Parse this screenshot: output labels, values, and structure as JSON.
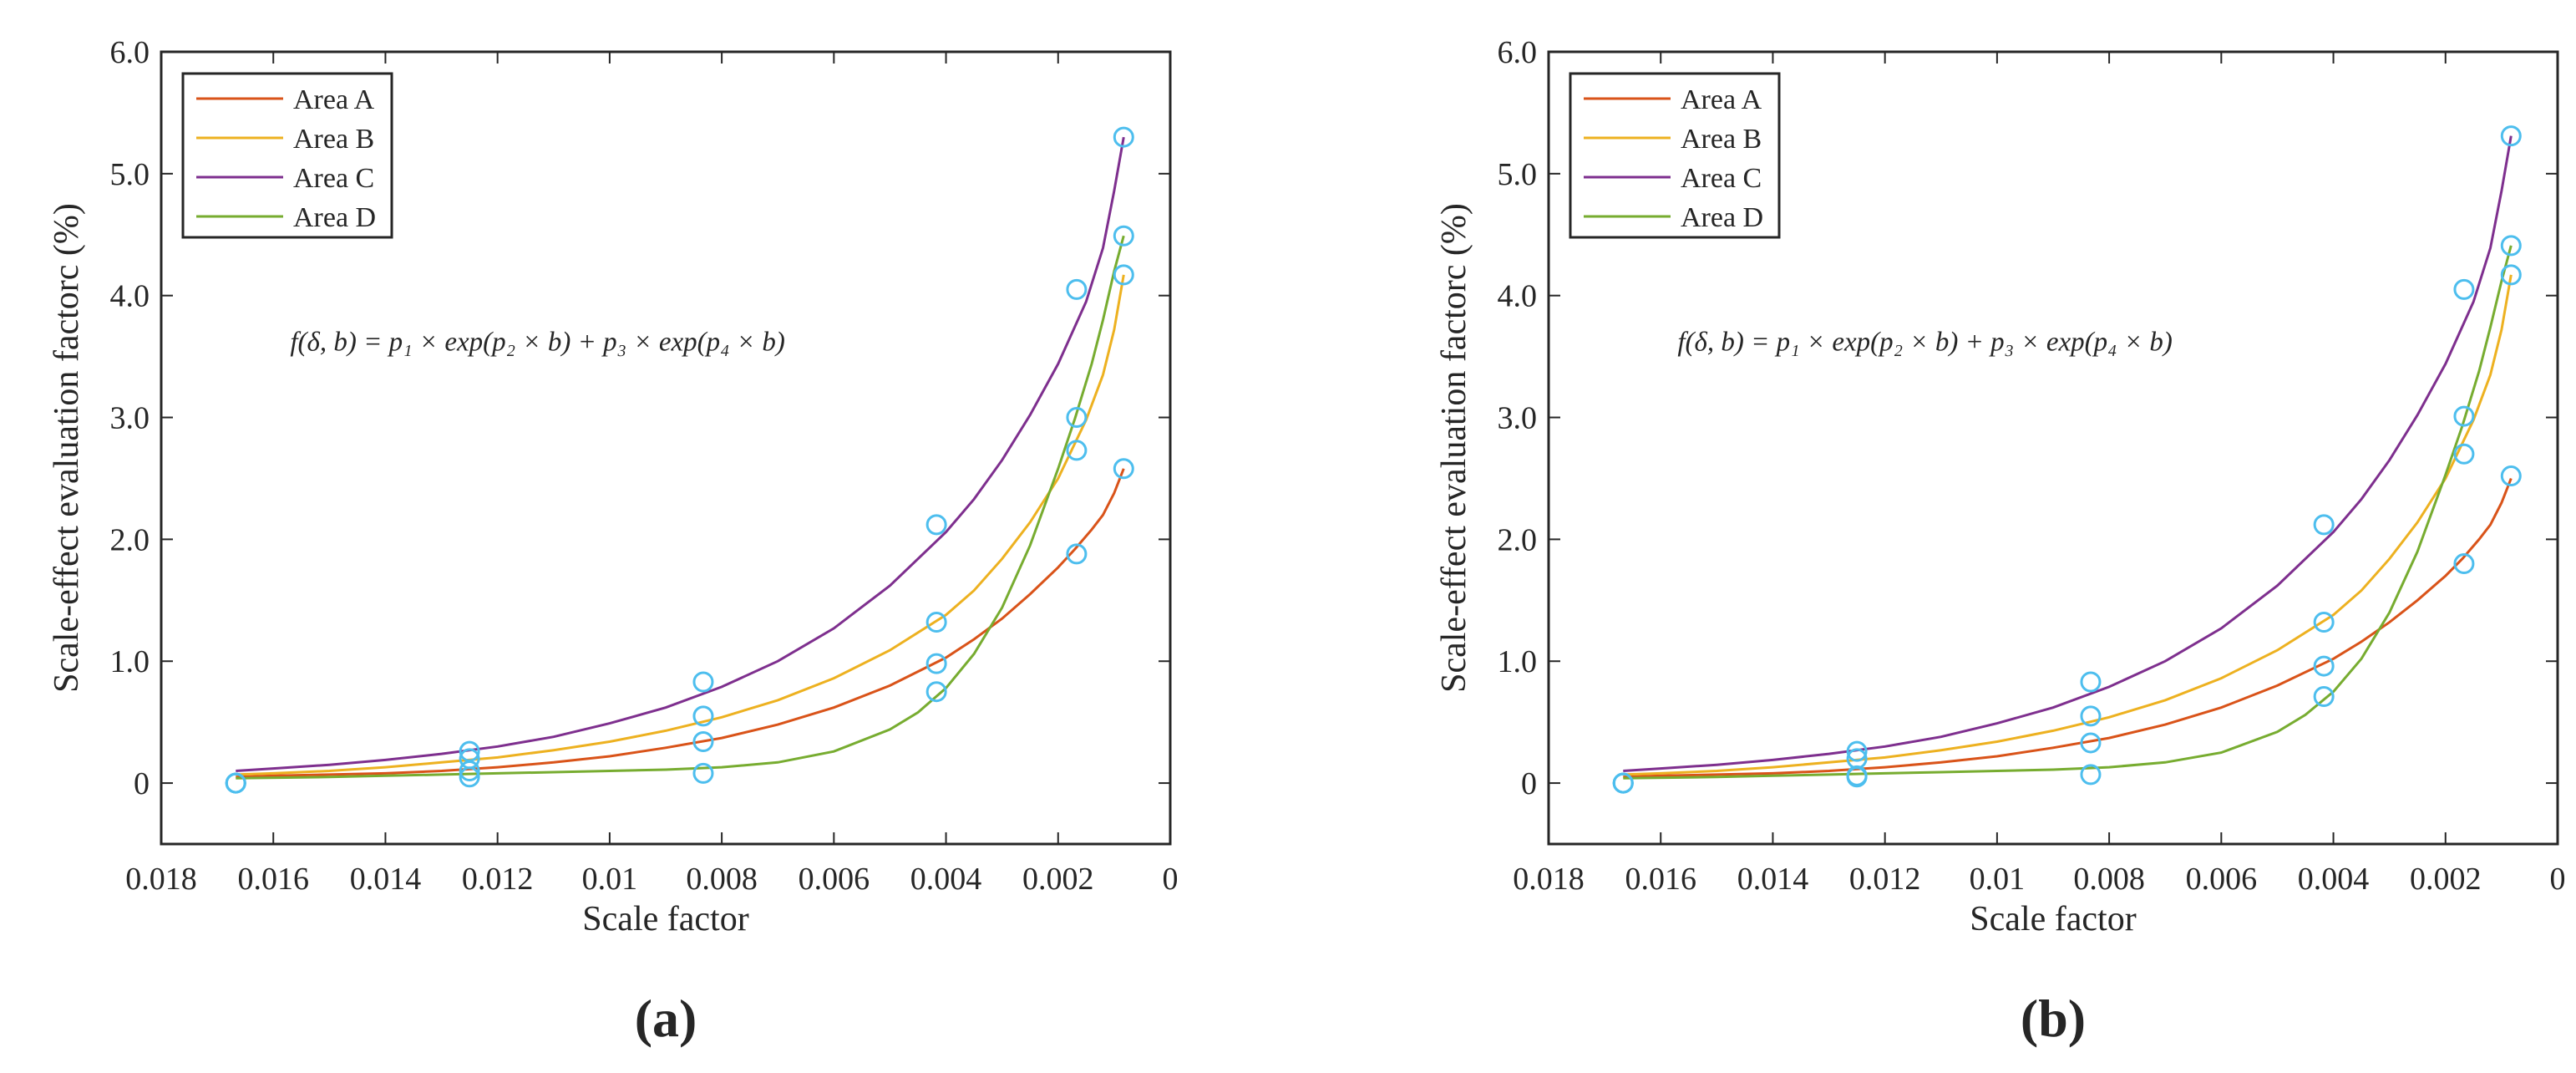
{
  "colors": {
    "area_a": "#d95319",
    "area_b": "#edb120",
    "area_c": "#7e2f8e",
    "area_d": "#77ac30",
    "marker": "#4dbeee",
    "axis": "#262626"
  },
  "chart_data": [
    {
      "type": "line",
      "panel_label": "(a)",
      "xlabel": "Scale factor",
      "ylabel": "Scale-effect evaluation factorc (%)",
      "xlim": [
        0.018,
        0
      ],
      "ylim": [
        -0.5,
        6.0
      ],
      "x_reversed": true,
      "xticks": [
        0.018,
        0.016,
        0.014,
        0.012,
        0.01,
        0.008,
        0.006,
        0.004,
        0.002,
        0
      ],
      "xtick_labels": [
        "0.018",
        "0.016",
        "0.014",
        "0.012",
        "0.01",
        "0.008",
        "0.006",
        "0.004",
        "0.002",
        "0"
      ],
      "yticks": [
        0,
        1,
        2,
        3,
        4,
        5,
        6
      ],
      "ytick_labels": [
        "0",
        "1.0",
        "2.0",
        "3.0",
        "4.0",
        "5.0",
        "6.0"
      ],
      "legend_position": "top-left",
      "annotation": {
        "text": "f(δ, b) = p₁ × exp(p₂ × b) + p₃ × exp(p₄ × b)",
        "x": 0.0157,
        "y": 3.55
      },
      "x": [
        0.01667,
        0.0125,
        0.00833,
        0.00417,
        0.00167,
        0.00083
      ],
      "series": [
        {
          "name": "Area A",
          "values": [
            0.0,
            0.1,
            0.34,
            0.98,
            1.88,
            2.58
          ],
          "curve_x": [
            0.01667,
            0.016,
            0.015,
            0.014,
            0.013,
            0.012,
            0.011,
            0.01,
            0.009,
            0.008,
            0.007,
            0.006,
            0.005,
            0.004,
            0.0035,
            0.003,
            0.0025,
            0.002,
            0.0017,
            0.0014,
            0.0012,
            0.001,
            0.00083
          ],
          "curve_y": [
            0.05,
            0.06,
            0.07,
            0.08,
            0.1,
            0.13,
            0.17,
            0.22,
            0.29,
            0.37,
            0.48,
            0.62,
            0.8,
            1.03,
            1.18,
            1.35,
            1.55,
            1.77,
            1.92,
            2.08,
            2.2,
            2.38,
            2.58
          ]
        },
        {
          "name": "Area B",
          "values": [
            0.0,
            0.2,
            0.55,
            1.32,
            3.0,
            4.17
          ],
          "curve_x": [
            0.01667,
            0.016,
            0.015,
            0.014,
            0.013,
            0.012,
            0.011,
            0.01,
            0.009,
            0.008,
            0.007,
            0.006,
            0.005,
            0.004,
            0.0035,
            0.003,
            0.0025,
            0.002,
            0.0015,
            0.0012,
            0.001,
            0.00083
          ],
          "curve_y": [
            0.07,
            0.08,
            0.1,
            0.13,
            0.17,
            0.21,
            0.27,
            0.34,
            0.43,
            0.54,
            0.68,
            0.86,
            1.09,
            1.38,
            1.58,
            1.84,
            2.14,
            2.5,
            2.98,
            3.35,
            3.72,
            4.17
          ]
        },
        {
          "name": "Area C",
          "values": [
            0.0,
            0.26,
            0.83,
            2.12,
            4.05,
            5.3
          ],
          "curve_x": [
            0.01667,
            0.016,
            0.015,
            0.014,
            0.013,
            0.012,
            0.011,
            0.01,
            0.009,
            0.008,
            0.007,
            0.006,
            0.005,
            0.004,
            0.0035,
            0.003,
            0.0025,
            0.002,
            0.0015,
            0.0012,
            0.001,
            0.00083
          ],
          "curve_y": [
            0.1,
            0.12,
            0.15,
            0.19,
            0.24,
            0.3,
            0.38,
            0.49,
            0.62,
            0.79,
            1.0,
            1.27,
            1.62,
            2.06,
            2.33,
            2.65,
            3.02,
            3.44,
            3.95,
            4.39,
            4.86,
            5.3
          ]
        },
        {
          "name": "Area D",
          "values": [
            0.0,
            0.05,
            0.08,
            0.75,
            2.73,
            4.49
          ],
          "curve_x": [
            0.01667,
            0.015,
            0.014,
            0.013,
            0.012,
            0.011,
            0.01,
            0.009,
            0.008,
            0.007,
            0.006,
            0.005,
            0.0045,
            0.004,
            0.0035,
            0.003,
            0.0025,
            0.002,
            0.0017,
            0.0014,
            0.0012,
            0.001,
            0.00083
          ],
          "curve_y": [
            0.04,
            0.05,
            0.06,
            0.07,
            0.08,
            0.09,
            0.1,
            0.11,
            0.13,
            0.17,
            0.26,
            0.44,
            0.58,
            0.78,
            1.06,
            1.44,
            1.95,
            2.58,
            2.99,
            3.44,
            3.8,
            4.2,
            4.49
          ]
        }
      ]
    },
    {
      "type": "line",
      "panel_label": "(b)",
      "xlabel": "Scale factor",
      "ylabel": "Scale-effect evaluation factorc (%)",
      "xlim": [
        0.018,
        0
      ],
      "ylim": [
        -0.5,
        6.0
      ],
      "x_reversed": true,
      "xticks": [
        0.018,
        0.016,
        0.014,
        0.012,
        0.01,
        0.008,
        0.006,
        0.004,
        0.002,
        0
      ],
      "xtick_labels": [
        "0.018",
        "0.016",
        "0.014",
        "0.012",
        "0.01",
        "0.008",
        "0.006",
        "0.004",
        "0.002",
        "0"
      ],
      "yticks": [
        0,
        1,
        2,
        3,
        4,
        5,
        6
      ],
      "ytick_labels": [
        "0",
        "1.0",
        "2.0",
        "3.0",
        "4.0",
        "5.0",
        "6.0"
      ],
      "legend_position": "top-left",
      "annotation": {
        "text": "f(δ, b) = p₁ × exp(p₂ × b) + p₃ × exp(p₄ × b)",
        "x": 0.0157,
        "y": 3.55
      },
      "x": [
        0.01667,
        0.0125,
        0.00833,
        0.00417,
        0.00167,
        0.00083
      ],
      "series": [
        {
          "name": "Area A",
          "values": [
            0.0,
            0.06,
            0.33,
            0.96,
            1.8,
            2.52
          ],
          "curve_x": [
            0.01667,
            0.016,
            0.015,
            0.014,
            0.013,
            0.012,
            0.011,
            0.01,
            0.009,
            0.008,
            0.007,
            0.006,
            0.005,
            0.004,
            0.0035,
            0.003,
            0.0025,
            0.002,
            0.0017,
            0.0014,
            0.0012,
            0.001,
            0.00083
          ],
          "curve_y": [
            0.05,
            0.06,
            0.07,
            0.08,
            0.1,
            0.13,
            0.17,
            0.22,
            0.29,
            0.37,
            0.48,
            0.62,
            0.8,
            1.02,
            1.16,
            1.32,
            1.5,
            1.7,
            1.84,
            2.0,
            2.12,
            2.3,
            2.5
          ]
        },
        {
          "name": "Area B",
          "values": [
            0.0,
            0.2,
            0.55,
            1.32,
            3.01,
            4.17
          ],
          "curve_x": [
            0.01667,
            0.016,
            0.015,
            0.014,
            0.013,
            0.012,
            0.011,
            0.01,
            0.009,
            0.008,
            0.007,
            0.006,
            0.005,
            0.004,
            0.0035,
            0.003,
            0.0025,
            0.002,
            0.0015,
            0.0012,
            0.001,
            0.00083
          ],
          "curve_y": [
            0.07,
            0.08,
            0.1,
            0.13,
            0.17,
            0.21,
            0.27,
            0.34,
            0.43,
            0.54,
            0.68,
            0.86,
            1.09,
            1.38,
            1.58,
            1.84,
            2.14,
            2.5,
            2.98,
            3.35,
            3.72,
            4.17
          ]
        },
        {
          "name": "Area C",
          "values": [
            0.0,
            0.26,
            0.83,
            2.12,
            4.05,
            5.31
          ],
          "curve_x": [
            0.01667,
            0.016,
            0.015,
            0.014,
            0.013,
            0.012,
            0.011,
            0.01,
            0.009,
            0.008,
            0.007,
            0.006,
            0.005,
            0.004,
            0.0035,
            0.003,
            0.0025,
            0.002,
            0.0015,
            0.0012,
            0.001,
            0.00083
          ],
          "curve_y": [
            0.1,
            0.12,
            0.15,
            0.19,
            0.24,
            0.3,
            0.38,
            0.49,
            0.62,
            0.79,
            1.0,
            1.27,
            1.62,
            2.06,
            2.33,
            2.65,
            3.02,
            3.44,
            3.95,
            4.39,
            4.86,
            5.31
          ]
        },
        {
          "name": "Area D",
          "values": [
            0.0,
            0.05,
            0.07,
            0.71,
            2.7,
            4.41
          ],
          "curve_x": [
            0.01667,
            0.015,
            0.014,
            0.013,
            0.012,
            0.011,
            0.01,
            0.009,
            0.008,
            0.007,
            0.006,
            0.005,
            0.0045,
            0.004,
            0.0035,
            0.003,
            0.0025,
            0.002,
            0.0017,
            0.0014,
            0.0012,
            0.001,
            0.00083
          ],
          "curve_y": [
            0.04,
            0.05,
            0.06,
            0.07,
            0.08,
            0.09,
            0.1,
            0.11,
            0.13,
            0.17,
            0.25,
            0.42,
            0.56,
            0.75,
            1.02,
            1.4,
            1.9,
            2.53,
            2.93,
            3.38,
            3.74,
            4.12,
            4.41
          ]
        }
      ]
    }
  ]
}
